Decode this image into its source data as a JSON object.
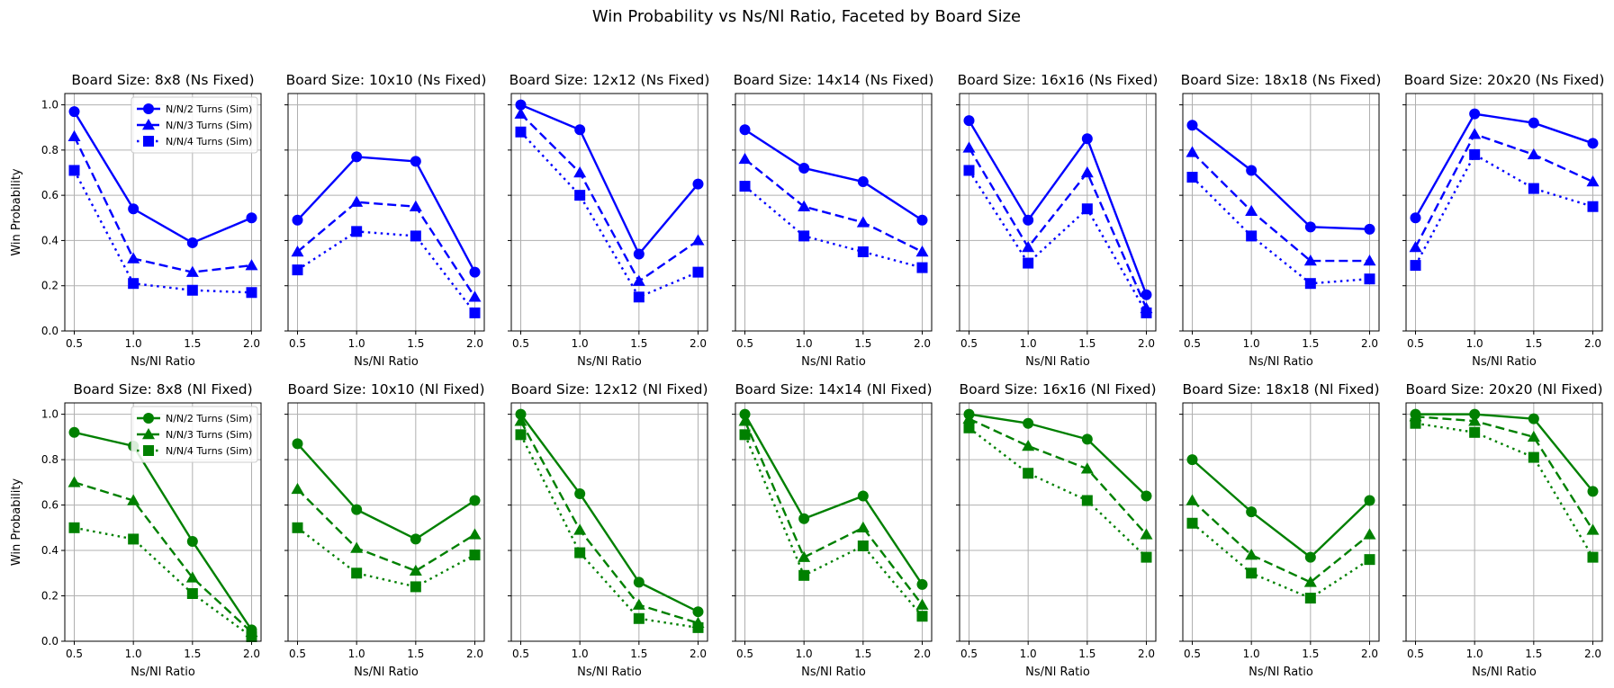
{
  "figure": {
    "title": "Win Probability vs Ns/Nl Ratio, Faceted by Board Size"
  },
  "colors": {
    "top_row": "#0000ff",
    "bottom_row": "#008000"
  },
  "legend": {
    "position": "upper-right",
    "entries": [
      "N/N/2 Turns (Sim)",
      "N/N/3 Turns (Sim)",
      "N/N/4 Turns (Sim)"
    ]
  },
  "chart_data": [
    {
      "type": "line",
      "row": 0,
      "col": 0,
      "title": "Board Size: 8x8 (Ns Fixed)",
      "xlabel": "Ns/Nl Ratio",
      "ylabel": "Win Probability",
      "x": [
        0.5,
        1.0,
        1.5,
        2.0
      ],
      "xlim": [
        0.42,
        2.08
      ],
      "ylim": [
        0,
        1.05
      ],
      "grid": true,
      "show_legend": true,
      "series": [
        {
          "name": "N/N/2 Turns (Sim)",
          "values": [
            0.97,
            0.54,
            0.39,
            0.5
          ]
        },
        {
          "name": "N/N/3 Turns (Sim)",
          "values": [
            0.86,
            0.32,
            0.26,
            0.29
          ]
        },
        {
          "name": "N/N/4 Turns (Sim)",
          "values": [
            0.71,
            0.21,
            0.18,
            0.17
          ]
        }
      ]
    },
    {
      "type": "line",
      "row": 0,
      "col": 1,
      "title": "Board Size: 10x10 (Ns Fixed)",
      "xlabel": "Ns/Nl Ratio",
      "ylabel": "",
      "x": [
        0.5,
        1.0,
        1.5,
        2.0
      ],
      "xlim": [
        0.42,
        2.08
      ],
      "ylim": [
        0,
        1.05
      ],
      "grid": true,
      "show_legend": false,
      "series": [
        {
          "name": "N/N/2 Turns (Sim)",
          "values": [
            0.49,
            0.77,
            0.75,
            0.26
          ]
        },
        {
          "name": "N/N/3 Turns (Sim)",
          "values": [
            0.35,
            0.57,
            0.55,
            0.15
          ]
        },
        {
          "name": "N/N/4 Turns (Sim)",
          "values": [
            0.27,
            0.44,
            0.42,
            0.08
          ]
        }
      ]
    },
    {
      "type": "line",
      "row": 0,
      "col": 2,
      "title": "Board Size: 12x12 (Ns Fixed)",
      "xlabel": "Ns/Nl Ratio",
      "ylabel": "",
      "x": [
        0.5,
        1.0,
        1.5,
        2.0
      ],
      "xlim": [
        0.42,
        2.08
      ],
      "ylim": [
        0,
        1.05
      ],
      "grid": true,
      "show_legend": false,
      "series": [
        {
          "name": "N/N/2 Turns (Sim)",
          "values": [
            1.0,
            0.89,
            0.34,
            0.65
          ]
        },
        {
          "name": "N/N/3 Turns (Sim)",
          "values": [
            0.96,
            0.7,
            0.22,
            0.4
          ]
        },
        {
          "name": "N/N/4 Turns (Sim)",
          "values": [
            0.88,
            0.6,
            0.15,
            0.26
          ]
        }
      ]
    },
    {
      "type": "line",
      "row": 0,
      "col": 3,
      "title": "Board Size: 14x14 (Ns Fixed)",
      "xlabel": "Ns/Nl Ratio",
      "ylabel": "",
      "x": [
        0.5,
        1.0,
        1.5,
        2.0
      ],
      "xlim": [
        0.42,
        2.08
      ],
      "ylim": [
        0,
        1.05
      ],
      "grid": true,
      "show_legend": false,
      "series": [
        {
          "name": "N/N/2 Turns (Sim)",
          "values": [
            0.89,
            0.72,
            0.66,
            0.49
          ]
        },
        {
          "name": "N/N/3 Turns (Sim)",
          "values": [
            0.76,
            0.55,
            0.48,
            0.35
          ]
        },
        {
          "name": "N/N/4 Turns (Sim)",
          "values": [
            0.64,
            0.42,
            0.35,
            0.28
          ]
        }
      ]
    },
    {
      "type": "line",
      "row": 0,
      "col": 4,
      "title": "Board Size: 16x16 (Ns Fixed)",
      "xlabel": "Ns/Nl Ratio",
      "ylabel": "",
      "x": [
        0.5,
        1.0,
        1.5,
        2.0
      ],
      "xlim": [
        0.42,
        2.08
      ],
      "ylim": [
        0,
        1.05
      ],
      "grid": true,
      "show_legend": false,
      "series": [
        {
          "name": "N/N/2 Turns (Sim)",
          "values": [
            0.93,
            0.49,
            0.85,
            0.16
          ]
        },
        {
          "name": "N/N/3 Turns (Sim)",
          "values": [
            0.81,
            0.37,
            0.7,
            0.1
          ]
        },
        {
          "name": "N/N/4 Turns (Sim)",
          "values": [
            0.71,
            0.3,
            0.54,
            0.08
          ]
        }
      ]
    },
    {
      "type": "line",
      "row": 0,
      "col": 5,
      "title": "Board Size: 18x18 (Ns Fixed)",
      "xlabel": "Ns/Nl Ratio",
      "ylabel": "",
      "x": [
        0.5,
        1.0,
        1.5,
        2.0
      ],
      "xlim": [
        0.42,
        2.08
      ],
      "ylim": [
        0,
        1.05
      ],
      "grid": true,
      "show_legend": false,
      "series": [
        {
          "name": "N/N/2 Turns (Sim)",
          "values": [
            0.91,
            0.71,
            0.46,
            0.45
          ]
        },
        {
          "name": "N/N/3 Turns (Sim)",
          "values": [
            0.79,
            0.53,
            0.31,
            0.31
          ]
        },
        {
          "name": "N/N/4 Turns (Sim)",
          "values": [
            0.68,
            0.42,
            0.21,
            0.23
          ]
        }
      ]
    },
    {
      "type": "line",
      "row": 0,
      "col": 6,
      "title": "Board Size: 20x20 (Ns Fixed)",
      "xlabel": "Ns/Nl Ratio",
      "ylabel": "",
      "x": [
        0.5,
        1.0,
        1.5,
        2.0
      ],
      "xlim": [
        0.42,
        2.08
      ],
      "ylim": [
        0,
        1.05
      ],
      "grid": true,
      "show_legend": false,
      "series": [
        {
          "name": "N/N/2 Turns (Sim)",
          "values": [
            0.5,
            0.96,
            0.92,
            0.83
          ]
        },
        {
          "name": "N/N/3 Turns (Sim)",
          "values": [
            0.37,
            0.87,
            0.78,
            0.66
          ]
        },
        {
          "name": "N/N/4 Turns (Sim)",
          "values": [
            0.29,
            0.78,
            0.63,
            0.55
          ]
        }
      ]
    },
    {
      "type": "line",
      "row": 1,
      "col": 0,
      "title": "Board Size: 8x8 (Nl Fixed)",
      "xlabel": "Ns/Nl Ratio",
      "ylabel": "Win Probability",
      "x": [
        0.5,
        1.0,
        1.5,
        2.0
      ],
      "xlim": [
        0.42,
        2.08
      ],
      "ylim": [
        0,
        1.05
      ],
      "grid": true,
      "show_legend": true,
      "series": [
        {
          "name": "N/N/2 Turns (Sim)",
          "values": [
            0.92,
            0.86,
            0.44,
            0.05
          ]
        },
        {
          "name": "N/N/3 Turns (Sim)",
          "values": [
            0.7,
            0.62,
            0.28,
            0.04
          ]
        },
        {
          "name": "N/N/4 Turns (Sim)",
          "values": [
            0.5,
            0.45,
            0.21,
            0.02
          ]
        }
      ]
    },
    {
      "type": "line",
      "row": 1,
      "col": 1,
      "title": "Board Size: 10x10 (Nl Fixed)",
      "xlabel": "Ns/Nl Ratio",
      "ylabel": "",
      "x": [
        0.5,
        1.0,
        1.5,
        2.0
      ],
      "xlim": [
        0.42,
        2.08
      ],
      "ylim": [
        0,
        1.05
      ],
      "grid": true,
      "show_legend": false,
      "series": [
        {
          "name": "N/N/2 Turns (Sim)",
          "values": [
            0.87,
            0.58,
            0.45,
            0.62
          ]
        },
        {
          "name": "N/N/3 Turns (Sim)",
          "values": [
            0.67,
            0.41,
            0.31,
            0.47
          ]
        },
        {
          "name": "N/N/4 Turns (Sim)",
          "values": [
            0.5,
            0.3,
            0.24,
            0.38
          ]
        }
      ]
    },
    {
      "type": "line",
      "row": 1,
      "col": 2,
      "title": "Board Size: 12x12 (Nl Fixed)",
      "xlabel": "Ns/Nl Ratio",
      "ylabel": "",
      "x": [
        0.5,
        1.0,
        1.5,
        2.0
      ],
      "xlim": [
        0.42,
        2.08
      ],
      "ylim": [
        0,
        1.05
      ],
      "grid": true,
      "show_legend": false,
      "series": [
        {
          "name": "N/N/2 Turns (Sim)",
          "values": [
            1.0,
            0.65,
            0.26,
            0.13
          ]
        },
        {
          "name": "N/N/3 Turns (Sim)",
          "values": [
            0.97,
            0.49,
            0.16,
            0.08
          ]
        },
        {
          "name": "N/N/4 Turns (Sim)",
          "values": [
            0.91,
            0.39,
            0.1,
            0.06
          ]
        }
      ]
    },
    {
      "type": "line",
      "row": 1,
      "col": 3,
      "title": "Board Size: 14x14 (Nl Fixed)",
      "xlabel": "Ns/Nl Ratio",
      "ylabel": "",
      "x": [
        0.5,
        1.0,
        1.5,
        2.0
      ],
      "xlim": [
        0.42,
        2.08
      ],
      "ylim": [
        0,
        1.05
      ],
      "grid": true,
      "show_legend": false,
      "series": [
        {
          "name": "N/N/2 Turns (Sim)",
          "values": [
            1.0,
            0.54,
            0.64,
            0.25
          ]
        },
        {
          "name": "N/N/3 Turns (Sim)",
          "values": [
            0.97,
            0.37,
            0.5,
            0.16
          ]
        },
        {
          "name": "N/N/4 Turns (Sim)",
          "values": [
            0.91,
            0.29,
            0.42,
            0.11
          ]
        }
      ]
    },
    {
      "type": "line",
      "row": 1,
      "col": 4,
      "title": "Board Size: 16x16 (Nl Fixed)",
      "xlabel": "Ns/Nl Ratio",
      "ylabel": "",
      "x": [
        0.5,
        1.0,
        1.5,
        2.0
      ],
      "xlim": [
        0.42,
        2.08
      ],
      "ylim": [
        0,
        1.05
      ],
      "grid": true,
      "show_legend": false,
      "series": [
        {
          "name": "N/N/2 Turns (Sim)",
          "values": [
            1.0,
            0.96,
            0.89,
            0.64
          ]
        },
        {
          "name": "N/N/3 Turns (Sim)",
          "values": [
            0.98,
            0.86,
            0.76,
            0.47
          ]
        },
        {
          "name": "N/N/4 Turns (Sim)",
          "values": [
            0.94,
            0.74,
            0.62,
            0.37
          ]
        }
      ]
    },
    {
      "type": "line",
      "row": 1,
      "col": 5,
      "title": "Board Size: 18x18 (Nl Fixed)",
      "xlabel": "Ns/Nl Ratio",
      "ylabel": "",
      "x": [
        0.5,
        1.0,
        1.5,
        2.0
      ],
      "xlim": [
        0.42,
        2.08
      ],
      "ylim": [
        0,
        1.05
      ],
      "grid": true,
      "show_legend": false,
      "series": [
        {
          "name": "N/N/2 Turns (Sim)",
          "values": [
            0.8,
            0.57,
            0.37,
            0.62
          ]
        },
        {
          "name": "N/N/3 Turns (Sim)",
          "values": [
            0.62,
            0.38,
            0.26,
            0.47
          ]
        },
        {
          "name": "N/N/4 Turns (Sim)",
          "values": [
            0.52,
            0.3,
            0.19,
            0.36
          ]
        }
      ]
    },
    {
      "type": "line",
      "row": 1,
      "col": 6,
      "title": "Board Size: 20x20 (Nl Fixed)",
      "xlabel": "Ns/Nl Ratio",
      "ylabel": "",
      "x": [
        0.5,
        1.0,
        1.5,
        2.0
      ],
      "xlim": [
        0.42,
        2.08
      ],
      "ylim": [
        0,
        1.05
      ],
      "grid": true,
      "show_legend": false,
      "series": [
        {
          "name": "N/N/2 Turns (Sim)",
          "values": [
            1.0,
            1.0,
            0.98,
            0.66
          ]
        },
        {
          "name": "N/N/3 Turns (Sim)",
          "values": [
            0.99,
            0.97,
            0.9,
            0.49
          ]
        },
        {
          "name": "N/N/4 Turns (Sim)",
          "values": [
            0.96,
            0.92,
            0.81,
            0.37
          ]
        }
      ]
    }
  ]
}
